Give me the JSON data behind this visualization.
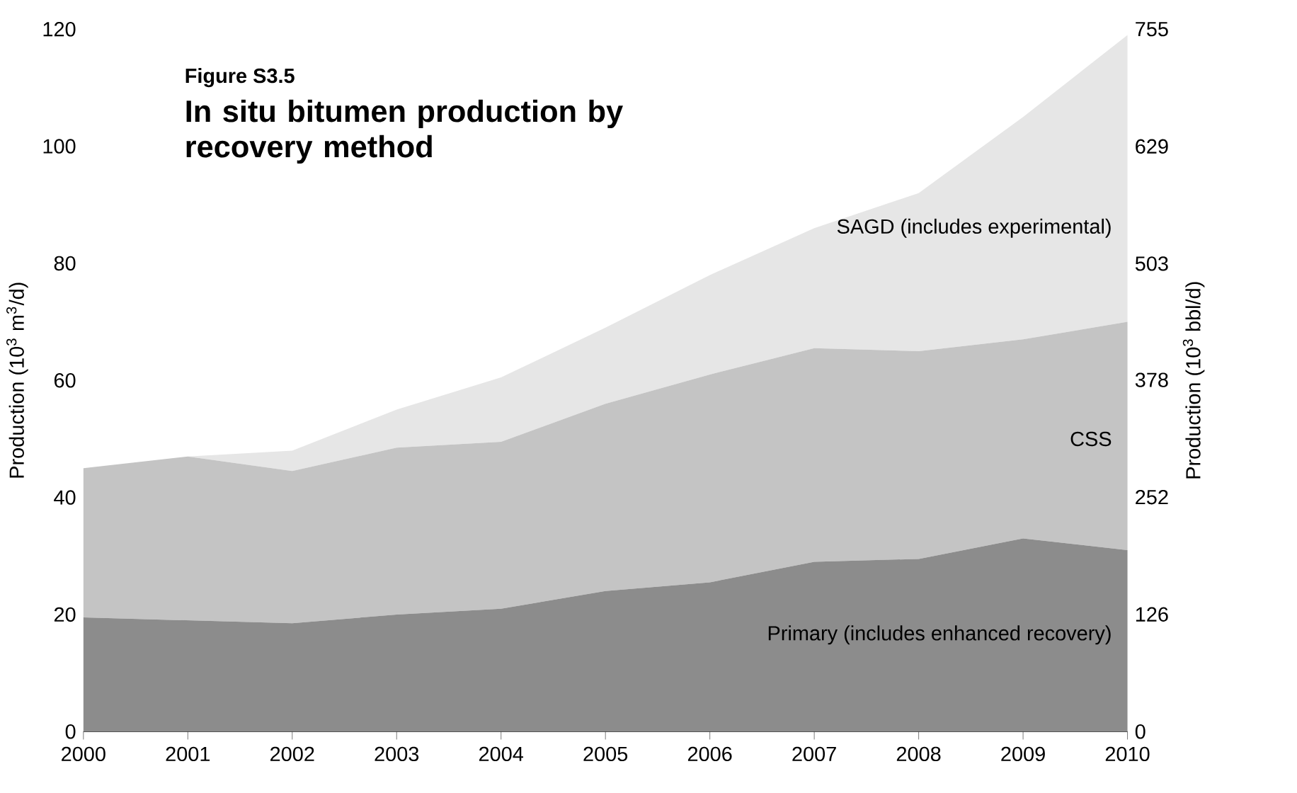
{
  "chart_data": {
    "type": "area",
    "stacked": true,
    "title": "In situ bitumen production by recovery method",
    "annotations": [
      "Figure S3.5"
    ],
    "xlabel": null,
    "ylabel": "Production (10$^{3}$ m$^{3}$/d)",
    "y2label": "Production (10$^{3}$ bbl/d)",
    "x": [
      2000,
      2001,
      2002,
      2003,
      2004,
      2005,
      2006,
      2007,
      2008,
      2009,
      2010
    ],
    "xlim": [
      2000,
      2010
    ],
    "xticks": [
      2000,
      2001,
      2002,
      2003,
      2004,
      2005,
      2006,
      2007,
      2008,
      2009,
      2010
    ],
    "ylim": [
      0,
      120
    ],
    "yticks": [
      0,
      20,
      40,
      60,
      80,
      100,
      120
    ],
    "y2lim": [
      0,
      755
    ],
    "y2ticks": [
      0,
      126,
      252,
      378,
      503,
      629,
      755
    ],
    "grid": false,
    "series": [
      {
        "name": "Primary (includes enhanced recovery)",
        "color": "#8c8c8c",
        "values": [
          19.5,
          19,
          18.5,
          20,
          21,
          24,
          25.5,
          29,
          29.5,
          33,
          31
        ]
      },
      {
        "name": "CSS",
        "color": "#c4c4c4",
        "values": [
          25.5,
          28,
          26,
          28.5,
          28.5,
          32,
          35.5,
          36.5,
          35.5,
          34,
          39
        ]
      },
      {
        "name": "SAGD (includes experimental)",
        "color": "#e6e6e6",
        "values": [
          0,
          0,
          3.5,
          6.5,
          11,
          13,
          17,
          20.5,
          27,
          38,
          49
        ]
      }
    ]
  }
}
